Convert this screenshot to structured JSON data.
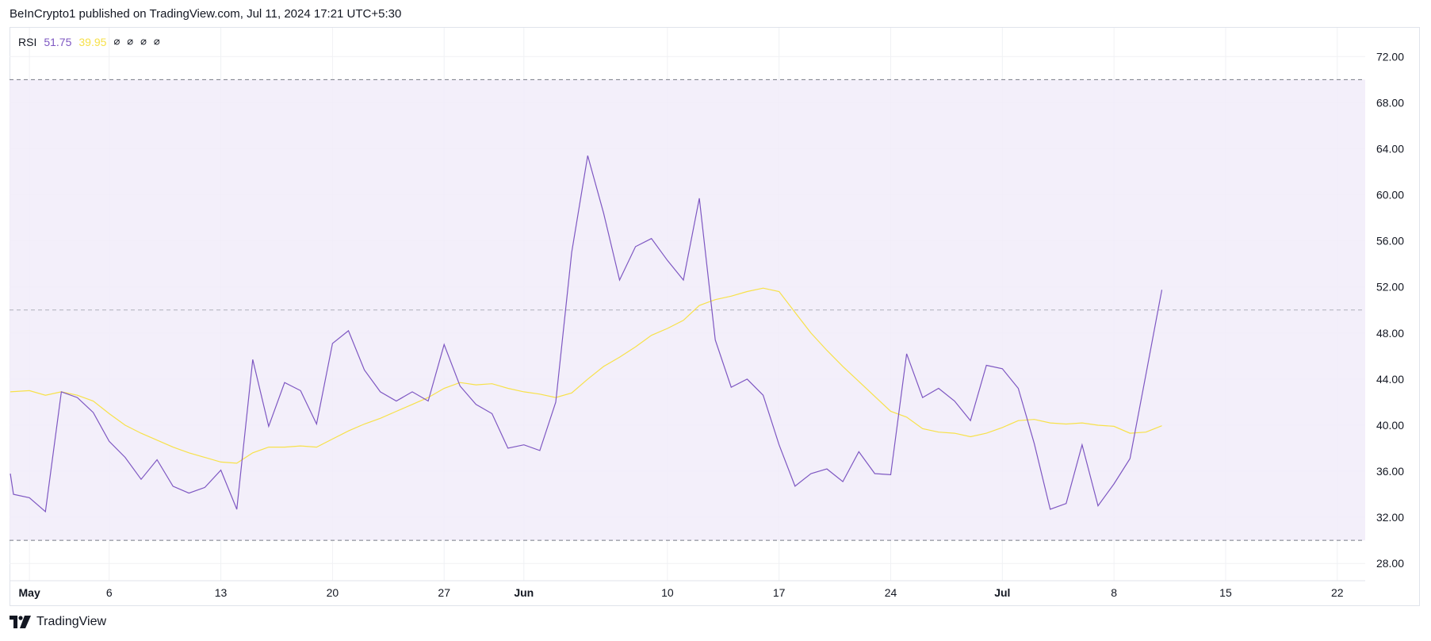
{
  "header": {
    "title": "BeInCrypto1 published on TradingView.com, Jul 11, 2024 17:21 UTC+5:30"
  },
  "legend": {
    "name": "RSI",
    "rsi_value": "51.75",
    "ma_value": "39.95",
    "na_values": [
      "∅",
      "∅",
      "∅",
      "∅"
    ]
  },
  "footer": {
    "brand": "TradingView"
  },
  "colors": {
    "rsi_line": "#7e57c2",
    "ma_line": "#f7e14a",
    "band_fill": "#f1ecf9",
    "band_border": "#787b86"
  },
  "chart_data": {
    "type": "line",
    "title": "",
    "ylim": [
      26.5,
      74.5
    ],
    "yticks": [
      "72.00",
      "68.00",
      "64.00",
      "60.00",
      "56.00",
      "52.00",
      "48.00",
      "44.00",
      "40.00",
      "36.00",
      "32.00",
      "28.00"
    ],
    "xticks": [
      {
        "label": "May",
        "day": 0,
        "bold": true
      },
      {
        "label": "6",
        "day": 5,
        "bold": false
      },
      {
        "label": "13",
        "day": 12,
        "bold": false
      },
      {
        "label": "20",
        "day": 19,
        "bold": false
      },
      {
        "label": "27",
        "day": 26,
        "bold": false
      },
      {
        "label": "Jun",
        "day": 31,
        "bold": true
      },
      {
        "label": "10",
        "day": 40,
        "bold": false
      },
      {
        "label": "17",
        "day": 47,
        "bold": false
      },
      {
        "label": "24",
        "day": 54,
        "bold": false
      },
      {
        "label": "Jul",
        "day": 61,
        "bold": true
      },
      {
        "label": "8",
        "day": 68,
        "bold": false
      },
      {
        "label": "15",
        "day": 75,
        "bold": false
      },
      {
        "label": "22",
        "day": 82,
        "bold": false
      }
    ],
    "xlim_days": [
      -1.25,
      83.75
    ],
    "bands": {
      "upper": 70,
      "middle": 50,
      "lower": 30
    },
    "series": [
      {
        "name": "RSI",
        "x_days": [
          -1.2,
          -1,
          0,
          1,
          2,
          3,
          4,
          5,
          6,
          7,
          8,
          9,
          10,
          11,
          12,
          13,
          14,
          15,
          16,
          17,
          18,
          19,
          20,
          21,
          22,
          23,
          24,
          25,
          26,
          27,
          28,
          29,
          30,
          31,
          32,
          33,
          34,
          35,
          36,
          37,
          38,
          39,
          40,
          41,
          42,
          43,
          44,
          45,
          46,
          47,
          48,
          49,
          50,
          51,
          52,
          53,
          54,
          55,
          56,
          57,
          58,
          59,
          60,
          61,
          62,
          63,
          64,
          65,
          66,
          67,
          68,
          69,
          70,
          71
        ],
        "values": [
          35.8,
          34.0,
          33.7,
          32.5,
          42.9,
          42.4,
          41.1,
          38.6,
          37.2,
          35.3,
          37.0,
          34.7,
          34.1,
          34.6,
          36.1,
          32.7,
          45.7,
          39.9,
          43.7,
          43.0,
          40.1,
          47.1,
          48.2,
          44.8,
          42.9,
          42.1,
          42.9,
          42.1,
          47.0,
          43.4,
          41.8,
          41.0,
          38.0,
          38.3,
          37.8,
          42.0,
          55.0,
          63.4,
          58.4,
          52.6,
          55.5,
          56.2,
          54.3,
          52.6,
          59.7,
          47.4,
          43.3,
          44.0,
          42.6,
          38.3,
          34.7,
          35.8,
          36.2,
          35.1,
          37.7,
          35.8,
          35.7,
          46.2,
          42.4,
          43.2,
          42.1,
          40.4,
          45.2,
          44.9,
          43.2,
          38.4,
          32.7,
          33.2,
          38.3,
          33.0,
          34.9,
          37.1,
          44.4,
          51.75
        ]
      },
      {
        "name": "RSI MA",
        "x_days": [
          -1.2,
          0,
          1,
          2,
          3,
          4,
          5,
          6,
          7,
          8,
          9,
          10,
          11,
          12,
          13,
          14,
          15,
          16,
          17,
          18,
          19,
          20,
          21,
          22,
          23,
          24,
          25,
          26,
          27,
          28,
          29,
          30,
          31,
          32,
          33,
          34,
          35,
          36,
          37,
          38,
          39,
          40,
          41,
          42,
          43,
          44,
          45,
          46,
          47,
          48,
          49,
          50,
          51,
          52,
          53,
          54,
          55,
          56,
          57,
          58,
          59,
          60,
          61,
          62,
          63,
          64,
          65,
          66,
          67,
          68,
          69,
          70,
          71
        ],
        "values": [
          42.9,
          43.0,
          42.6,
          42.9,
          42.6,
          42.1,
          41.0,
          40.0,
          39.3,
          38.7,
          38.1,
          37.6,
          37.2,
          36.8,
          36.7,
          37.6,
          38.1,
          38.1,
          38.2,
          38.1,
          38.8,
          39.5,
          40.1,
          40.6,
          41.2,
          41.8,
          42.4,
          43.2,
          43.7,
          43.5,
          43.6,
          43.2,
          42.9,
          42.7,
          42.4,
          42.8,
          44.0,
          45.1,
          45.9,
          46.8,
          47.8,
          48.4,
          49.1,
          50.4,
          50.9,
          51.2,
          51.6,
          51.9,
          51.6,
          49.8,
          48.0,
          46.5,
          45.1,
          43.8,
          42.5,
          41.2,
          40.7,
          39.7,
          39.4,
          39.3,
          39.0,
          39.3,
          39.8,
          40.4,
          40.5,
          40.2,
          40.1,
          40.2,
          40.0,
          39.9,
          39.3,
          39.4,
          39.95
        ]
      }
    ]
  }
}
